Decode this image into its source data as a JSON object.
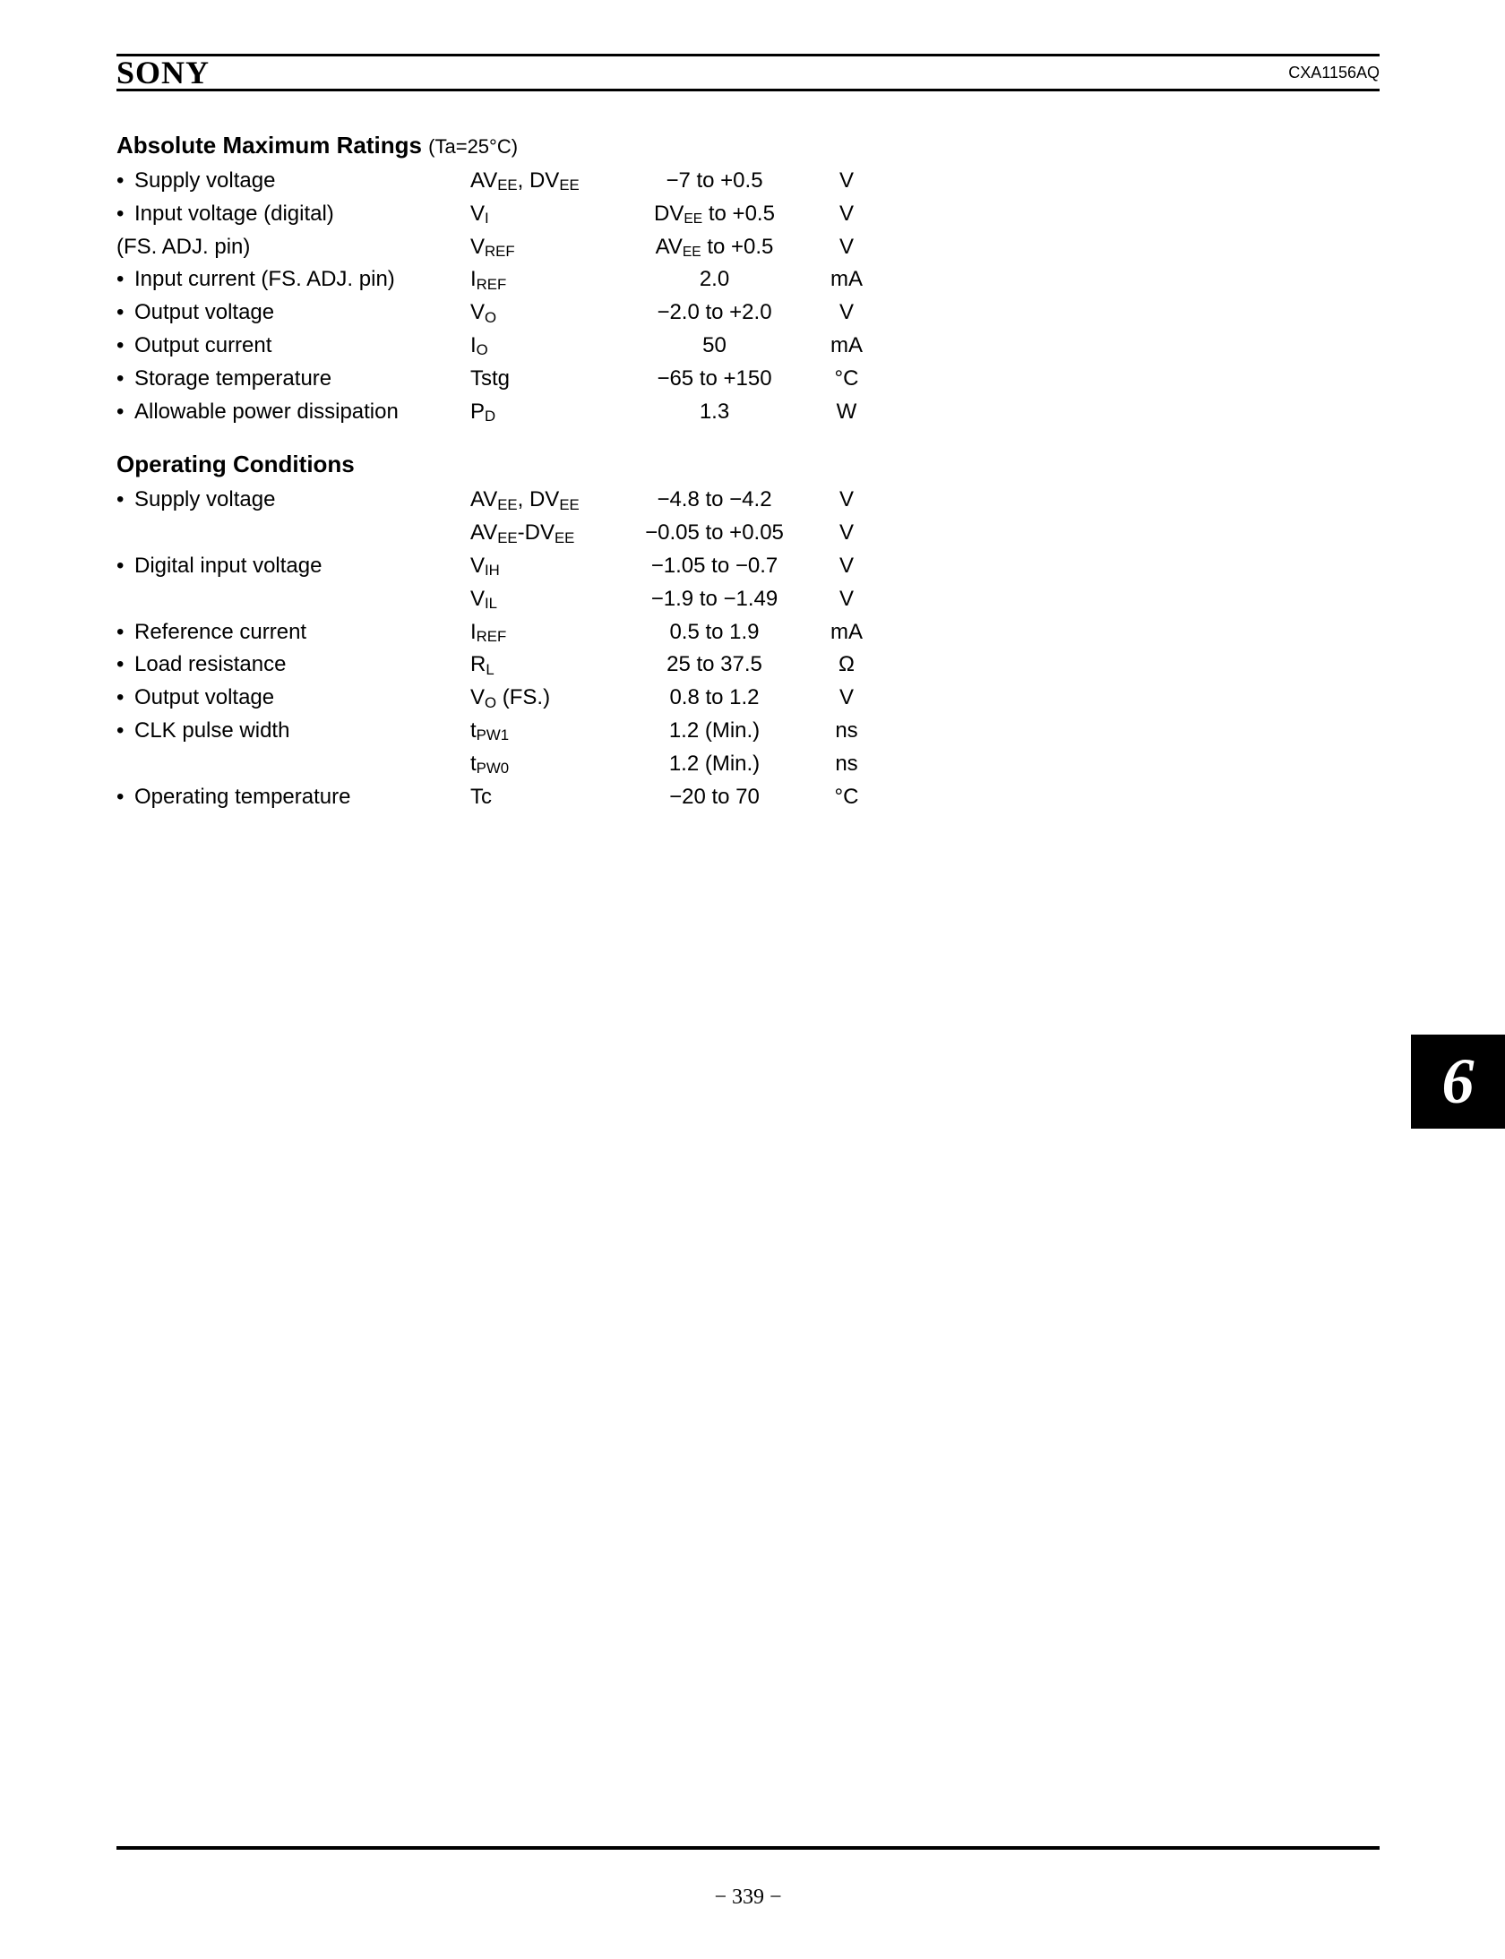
{
  "header": {
    "brand": "SONY",
    "part_number": "CXA1156AQ"
  },
  "sections": [
    {
      "title": "Absolute Maximum Ratings",
      "condition": "(Ta=25°C)",
      "rows": [
        {
          "param": "Supply voltage",
          "symbol_html": "AV<span class='sub'>EE</span>, DV<span class='sub'>EE</span>",
          "value": "−7 to +0.5",
          "unit": "V",
          "bullet": true
        },
        {
          "param": "Input voltage (digital)",
          "symbol_html": "V<span class='sub'>I</span>",
          "value": "DV<span class='sub sub-small'>EE</span> to +0.5",
          "unit": "V",
          "bullet": true,
          "value_is_html": true
        },
        {
          "param": "(FS. ADJ. pin)",
          "symbol_html": "V<span class='sub'>REF</span>",
          "value": "AV<span class='sub sub-small'>EE</span> to +0.5",
          "unit": "V",
          "bullet": false,
          "indent": true,
          "value_is_html": true
        },
        {
          "param": "Input current (FS. ADJ. pin)",
          "symbol_html": "I<span class='sub'>REF</span>",
          "value": "2.0",
          "unit": "mA",
          "bullet": true
        },
        {
          "param": "Output voltage",
          "symbol_html": "V<span class='sub'>O</span>",
          "value": "−2.0 to +2.0",
          "unit": "V",
          "bullet": true
        },
        {
          "param": "Output current",
          "symbol_html": "I<span class='sub'>O</span>",
          "value": "50",
          "unit": "mA",
          "bullet": true
        },
        {
          "param": "Storage temperature",
          "symbol_html": "Tstg",
          "value": "−65 to +150",
          "unit": "°C",
          "bullet": true
        },
        {
          "param": "Allowable power dissipation",
          "symbol_html": "P<span class='sub'>D</span>",
          "value": "1.3",
          "unit": "W",
          "bullet": true
        }
      ]
    },
    {
      "title": "Operating Conditions",
      "condition": "",
      "rows": [
        {
          "param": "Supply voltage",
          "symbol_html": "AV<span class='sub'>EE</span>, DV<span class='sub'>EE</span>",
          "value": "−4.8 to −4.2",
          "unit": "V",
          "bullet": true
        },
        {
          "param": "",
          "symbol_html": "AV<span class='sub'>EE</span>-DV<span class='sub'>EE</span>",
          "value": "−0.05 to +0.05",
          "unit": "V",
          "bullet": false
        },
        {
          "param": "Digital input voltage",
          "symbol_html": "V<span class='sub'>IH</span>",
          "value": "−1.05 to −0.7",
          "unit": "V",
          "bullet": true
        },
        {
          "param": "",
          "symbol_html": "V<span class='sub'>IL</span>",
          "value": "−1.9 to −1.49",
          "unit": "V",
          "bullet": false
        },
        {
          "param": "Reference current",
          "symbol_html": "I<span class='sub'>REF</span>",
          "value": "0.5 to 1.9",
          "unit": "mA",
          "bullet": true
        },
        {
          "param": "Load resistance",
          "symbol_html": "R<span class='sub'>L</span>",
          "value": "25 to 37.5",
          "unit": "Ω",
          "bullet": true
        },
        {
          "param": "Output voltage",
          "symbol_html": "V<span class='sub'>O</span> (FS.)",
          "value": "0.8 to 1.2",
          "unit": "V",
          "bullet": true
        },
        {
          "param": "CLK pulse width",
          "symbol_html": "t<span class='sub'>PW1</span>",
          "value": "1.2 (Min.)",
          "unit": "ns",
          "bullet": true
        },
        {
          "param": "",
          "symbol_html": "t<span class='sub'>PW0</span>",
          "value": "1.2 (Min.)",
          "unit": "ns",
          "bullet": false
        },
        {
          "param": "Operating temperature",
          "symbol_html": "Tc",
          "value": "−20 to 70",
          "unit": "°C",
          "bullet": true
        }
      ]
    }
  ],
  "tab_marker": "6",
  "page_number": "− 339 −"
}
